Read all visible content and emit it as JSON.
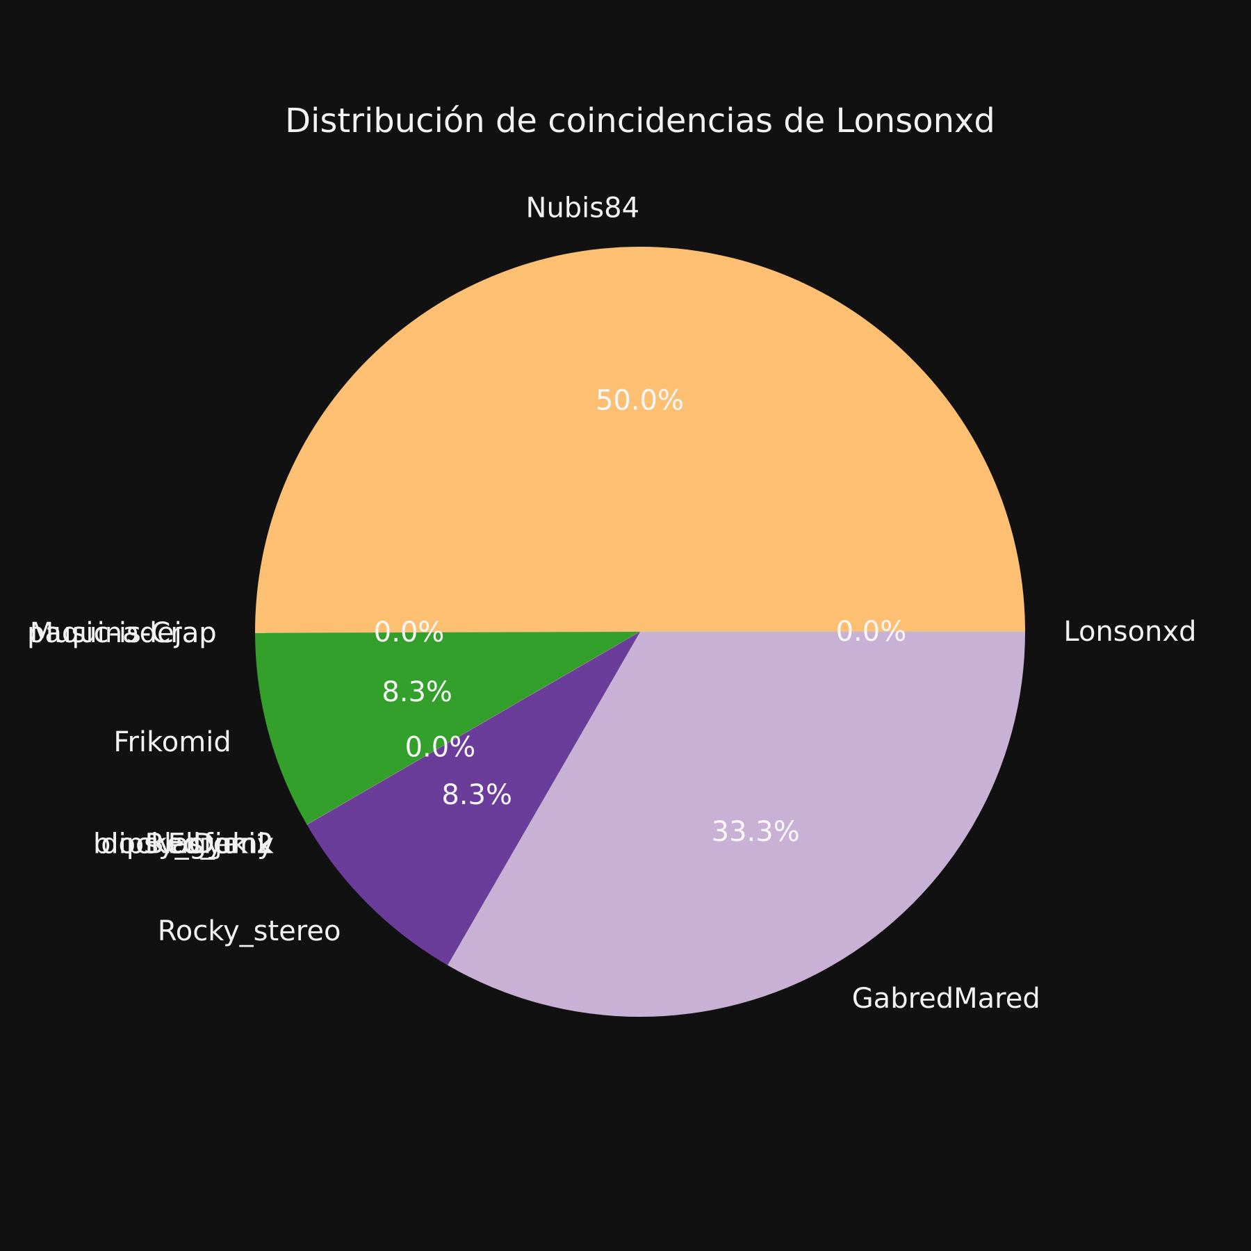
{
  "chart_data": {
    "type": "pie",
    "title": "Distribución de coincidencias de Lonsonxd",
    "slices": [
      {
        "label": "Nubis84",
        "value": 50.0,
        "pct_label": "50.0%",
        "color": "#fdc072"
      },
      {
        "label": "Music-is-Crap",
        "value": 0.0,
        "pct_label": "",
        "color": "#b2df8a"
      },
      {
        "label": "paquinadejap",
        "value": 0.0,
        "pct_label": "0.0%",
        "color": "#b2df8a"
      },
      {
        "label": "Frikomid",
        "value": 8.3,
        "pct_label": "8.3%",
        "color": "#33a02c"
      },
      {
        "label": "Blasfemy",
        "value": 0.0,
        "pct_label": "",
        "color": "#e31a1c"
      },
      {
        "label": "ElDuki2",
        "value": 0.0,
        "pct_label": "",
        "color": "#fb9a99"
      },
      {
        "label": "dipsy_gyank",
        "value": 0.0,
        "pct_label": "",
        "color": "#ff7f00"
      },
      {
        "label": "blocked_junk",
        "value": 0.0,
        "pct_label": "0.0%",
        "color": "#cab2d6"
      },
      {
        "label": "Rocky_stereo",
        "value": 8.3,
        "pct_label": "8.3%",
        "color": "#6a3d9a"
      },
      {
        "label": "GabredMared",
        "value": 33.3,
        "pct_label": "33.3%",
        "color": "#c9b1d6"
      },
      {
        "label": "Lonsonxd",
        "value": 0.0,
        "pct_label": "0.0%",
        "color": "#a6cee3"
      }
    ],
    "direction": "counterclockwise",
    "legend": "none"
  }
}
